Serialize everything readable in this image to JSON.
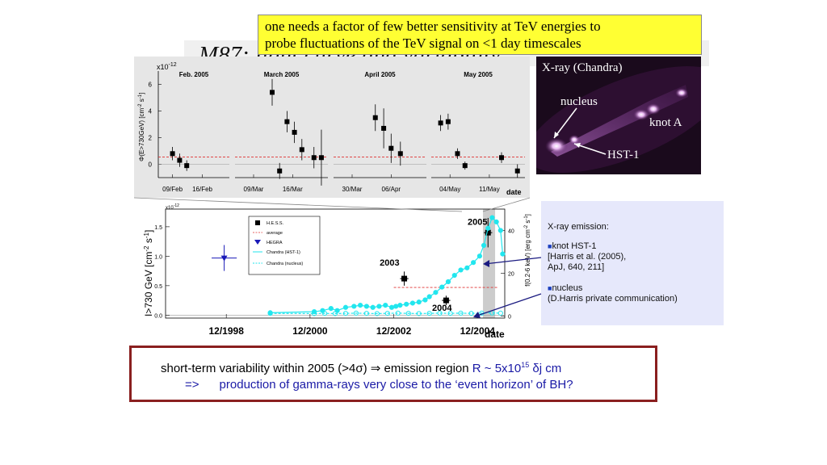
{
  "title": "M87: light curve and variability",
  "note": {
    "line1": "one needs a factor of few better sensitivity at TeV energies to",
    "line2": "probe fluctuations  of the TeV  signal on <1 day  timescales"
  },
  "xray_image": {
    "title": "X-ray (Chandra)",
    "labels": {
      "nucleus": "nucleus",
      "knot_a": "knot A",
      "hst1": "HST-1"
    }
  },
  "info": {
    "heading": "X-ray emission:",
    "item1": {
      "l1": "knot HST-1",
      "l2": "[Harris et al. (2005),",
      "l3": "ApJ, 640, 211]"
    },
    "item2": {
      "l1": "nucleus",
      "l2": "(D.Harris private communication)"
    }
  },
  "conclusion": {
    "l1_a": "short-term variability within 2005 (>4",
    "l1_sigma": "σ",
    "l1_b": ")",
    "l1_arrow": "⇒",
    "l1_c": "  emission region ",
    "l1_d": "R ~ 5x10",
    "l1_sup": "15",
    "l1_e": " δj cm",
    "l2_a": "=>",
    "l2_b": "production of gamma-rays very close to the ‘event horizon’ of BH?"
  },
  "colors": {
    "hess": "#000000",
    "hegra": "#1a1ab8",
    "chandra": "#22e6ee",
    "average": "#e03030",
    "shade": "#cccccc"
  },
  "chart_data": [
    {
      "type": "scatter",
      "title": "",
      "ylabel": "Φ(E>730GeV) [cm^-2 s^-1]",
      "ylabel_text": "Φ(E>730GeV) [cm",
      "ylabel_exp1": "-2",
      "ylabel_mid": " s",
      "ylabel_exp2": "-1",
      "ylabel_end": "]",
      "scale_label": "x10",
      "scale_exp": "-12",
      "xlabel": "date",
      "ylim": [
        -1,
        7
      ],
      "yticks": [
        "0",
        "2",
        "4",
        "6"
      ],
      "average": 0.55,
      "panels": [
        {
          "month": "Feb. 2005",
          "ticks": [
            "09/Feb",
            "16/Feb"
          ],
          "points": [
            {
              "x": 0.2,
              "y": 0.8,
              "err": 0.5
            },
            {
              "x": 0.3,
              "y": 0.3,
              "err": 0.5
            },
            {
              "x": 0.4,
              "y": -0.1,
              "err": 0.4
            }
          ]
        },
        {
          "month": "March 2005",
          "ticks": [
            "09/Mar",
            "16/Mar"
          ],
          "points": [
            {
              "x": 0.4,
              "y": 5.4,
              "err": 1.0
            },
            {
              "x": 0.48,
              "y": -0.5,
              "err": 0.6
            },
            {
              "x": 0.56,
              "y": 3.2,
              "err": 0.8
            },
            {
              "x": 0.64,
              "y": 2.4,
              "err": 0.8
            },
            {
              "x": 0.72,
              "y": 1.1,
              "err": 0.8
            },
            {
              "x": 0.85,
              "y": 0.5,
              "err": 0.8
            },
            {
              "x": 0.93,
              "y": 0.5,
              "err": 2.1
            }
          ]
        },
        {
          "month": "April 2005",
          "ticks": [
            "30/Mar",
            "06/Apr"
          ],
          "points": [
            {
              "x": 0.45,
              "y": 3.5,
              "err": 1.0
            },
            {
              "x": 0.54,
              "y": 2.7,
              "err": 1.5
            },
            {
              "x": 0.62,
              "y": 1.2,
              "err": 1.1
            },
            {
              "x": 0.72,
              "y": 0.8,
              "err": 0.9
            }
          ]
        },
        {
          "month": "May 2005",
          "ticks": [
            "04/May",
            "11/May"
          ],
          "points": [
            {
              "x": 0.1,
              "y": 3.1,
              "err": 0.6
            },
            {
              "x": 0.18,
              "y": 3.2,
              "err": 0.6
            },
            {
              "x": 0.28,
              "y": 0.8,
              "err": 0.4
            },
            {
              "x": 0.36,
              "y": -0.1,
              "err": 0.3
            },
            {
              "x": 0.75,
              "y": 0.5,
              "err": 0.4
            },
            {
              "x": 0.92,
              "y": -0.5,
              "err": 0.5
            }
          ]
        }
      ]
    },
    {
      "type": "line",
      "title": "",
      "ylabel": "I>730 GeV [cm^-2 s^-1]",
      "ylabel_text": "I>730 GeV [cm",
      "ylabel_exp1": "-2",
      "ylabel_mid": " s",
      "ylabel_exp2": "-1",
      "ylabel_end": "]",
      "scale_label": "x10",
      "scale_exp": "-12",
      "y2label": "f(0.2-6 keV) [erg cm^-2 s^-1]",
      "y2label_text": "f(0.2-6 keV) [erg cm",
      "y2label_exp1": "-2",
      "y2label_mid": " s",
      "y2label_exp2": "-1",
      "y2label_end": "]",
      "xlabel": "date",
      "xlim": [
        1997.5,
        2005.6
      ],
      "ylim": [
        -0.05,
        1.8
      ],
      "y2lim": [
        -1,
        50
      ],
      "xticks": [
        "12/1998",
        "12/2000",
        "12/2002",
        "12/2004"
      ],
      "xtick_values": [
        1998.95,
        2000.95,
        2002.95,
        2004.95
      ],
      "yticks": [
        "0.0",
        "0.5",
        "1.0",
        "1.5"
      ],
      "y2ticks": [
        "0",
        "20",
        "40"
      ],
      "shaded_band": [
        2005.08,
        2005.37
      ],
      "average": {
        "value": 0.47,
        "x_range": [
          2002.95,
          2005.6
        ]
      },
      "year_labels": [
        {
          "text": "2005",
          "x": 2004.95,
          "y": 1.53
        },
        {
          "text": "2003",
          "x": 2002.85,
          "y": 0.84
        },
        {
          "text": "2004",
          "x": 2004.1,
          "y": 0.07
        }
      ],
      "legend": {
        "placement": "top-center",
        "entries": [
          "H.E.S.S.",
          "average",
          "HEGRA",
          "Chandra (HST-1)",
          "Chandra (nucleus)"
        ]
      },
      "series": [
        {
          "name": "H.E.S.S.",
          "points": [
            {
              "x": 2003.2,
              "y": 0.62,
              "xerr": 0.1,
              "yerr": 0.12
            },
            {
              "x": 2004.2,
              "y": 0.25,
              "xerr": 0.1,
              "yerr": 0.08
            },
            {
              "x": 2005.2,
              "y": 1.4,
              "xerr": 0.1,
              "yerr": 0.25
            }
          ]
        },
        {
          "name": "HEGRA",
          "points": [
            {
              "x": 1998.9,
              "y": 0.97,
              "xerr": 0.3,
              "yerr": 0.22
            }
          ]
        },
        {
          "name": "Chandra (HST-1)",
          "axis": "right",
          "x": [
            2000.0,
            2001.05,
            2001.25,
            2001.45,
            2001.6,
            2001.8,
            2002.0,
            2002.15,
            2002.3,
            2002.45,
            2002.6,
            2002.75,
            2002.9,
            2003.0,
            2003.1,
            2003.25,
            2003.4,
            2003.55,
            2003.7,
            2003.8,
            2003.95,
            2004.1,
            2004.25,
            2004.4,
            2004.55,
            2004.7,
            2004.85,
            2005.0,
            2005.1,
            2005.2,
            2005.3,
            2005.4,
            2005.5,
            2005.55
          ],
          "values": [
            1.5,
            2.0,
            2.5,
            3.5,
            2.5,
            4.0,
            4.5,
            5.0,
            4.5,
            4.0,
            4.5,
            5.0,
            4.0,
            4.5,
            5.0,
            5.5,
            6.0,
            6.5,
            7.5,
            9.0,
            11.0,
            13.5,
            16.0,
            19.0,
            21.5,
            22.5,
            25.0,
            28.0,
            33.0,
            41.0,
            46.0,
            44.0,
            40.0,
            29.0
          ]
        },
        {
          "name": "Chandra (nucleus)",
          "axis": "right",
          "x": [
            2000.0,
            2001.05,
            2001.3,
            2001.55,
            2001.8,
            2002.05,
            2002.3,
            2002.55,
            2002.8,
            2003.05,
            2003.3,
            2003.55,
            2003.8,
            2004.05,
            2004.3,
            2004.55,
            2004.8,
            2005.05,
            2005.3,
            2005.5
          ],
          "values": [
            1.2,
            1.1,
            1.2,
            1.1,
            1.2,
            1.3,
            1.2,
            1.1,
            1.2,
            1.3,
            1.2,
            1.1,
            1.2,
            1.3,
            1.2,
            1.3,
            1.2,
            1.3,
            1.4,
            1.3
          ]
        }
      ]
    }
  ]
}
